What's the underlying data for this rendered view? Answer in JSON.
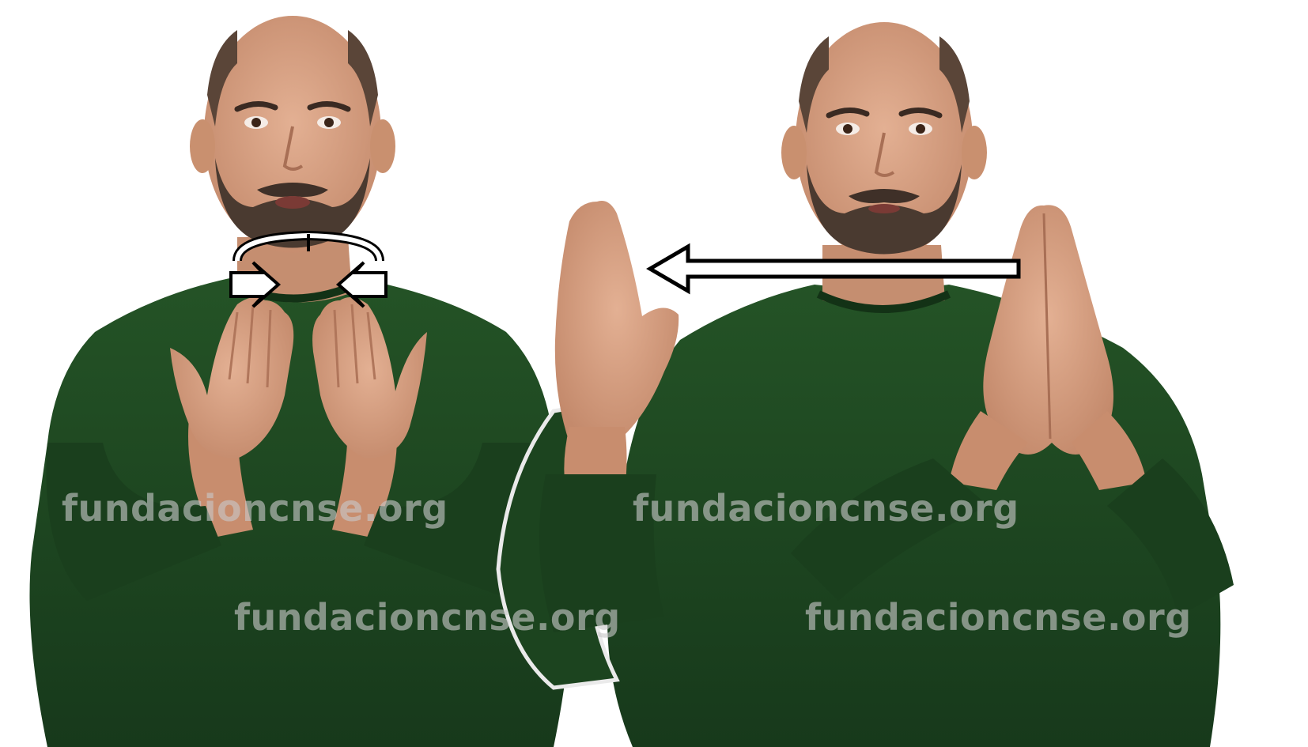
{
  "image": {
    "description_colors": {
      "background": "#ffffff",
      "shirt": "#1f4a22",
      "shirt_shadow": "#14361a",
      "skin": "#d9a486",
      "skin_shadow": "#b97e62",
      "beard": "#4a3a30",
      "arrow_fill": "#ffffff",
      "arrow_stroke": "#000000"
    },
    "figures": [
      {
        "name": "signer-left",
        "pose": "hands-open-palms-up-at-chin",
        "movement_icon": "circular-rotation-arrows-icon"
      },
      {
        "name": "signer-right",
        "pose": "palms-pressed-together-then-left-hand-moves-out",
        "movement_icon": "left-pointing-arrow-icon"
      }
    ]
  },
  "watermarks": [
    "fundacioncnse.org",
    "fundacioncnse.org",
    "fundacioncnse.org",
    "fundacioncnse.org"
  ]
}
